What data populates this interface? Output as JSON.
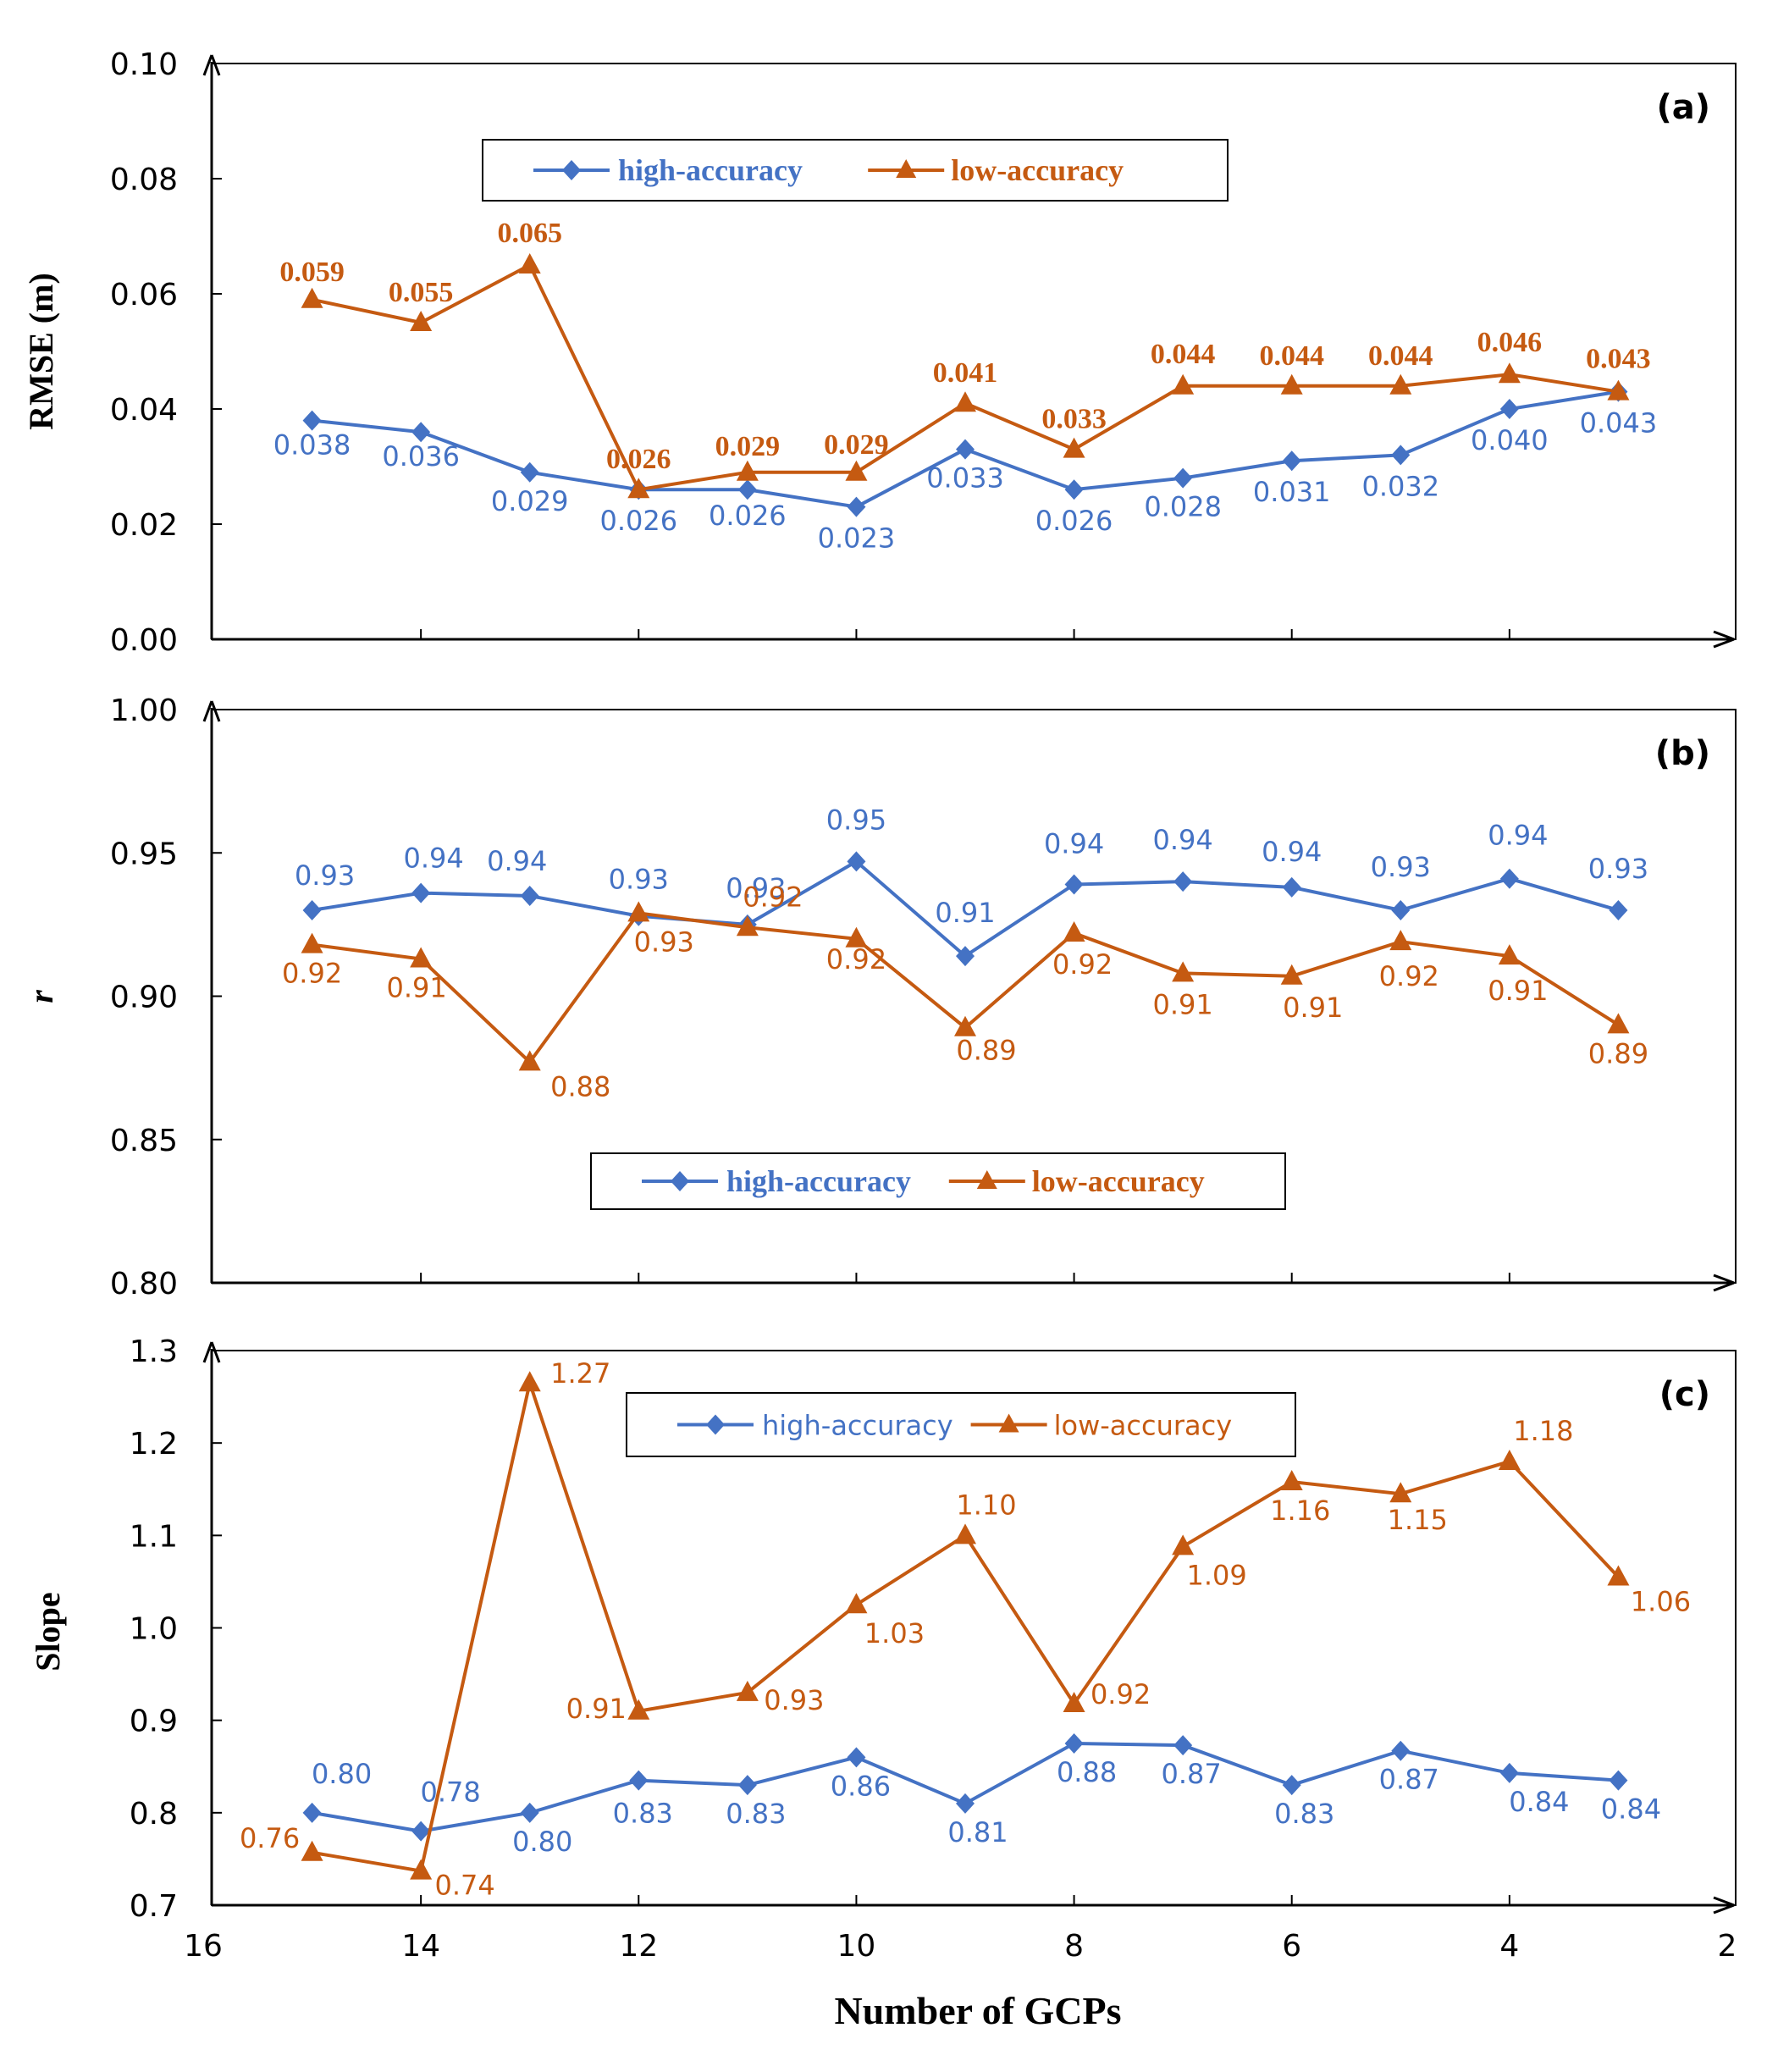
{
  "colors": {
    "high": "#4472C4",
    "low": "#C55A11",
    "axis": "#000000"
  },
  "xlabel": "Number of GCPs",
  "x_ticks": [
    "16",
    "14",
    "12",
    "10",
    "8",
    "6",
    "4",
    "2"
  ],
  "chart_data": [
    {
      "type": "line",
      "panel": "(a)",
      "ylabel": "RMSE (m)",
      "x": [
        15,
        14,
        13,
        12,
        11,
        10,
        9,
        8,
        7,
        6,
        5,
        4,
        3
      ],
      "xlim": [
        16,
        2
      ],
      "ylim": [
        0,
        0.1
      ],
      "y_ticks": [
        "0.00",
        "0.02",
        "0.04",
        "0.06",
        "0.08",
        "0.10"
      ],
      "legend": {
        "placement": "top-center",
        "high_label": "high-accuracy",
        "low_label": "low-accuracy"
      },
      "series": [
        {
          "name": "high-accuracy",
          "marker": "diamond",
          "values": [
            0.038,
            0.036,
            0.029,
            0.026,
            0.026,
            0.023,
            0.033,
            0.026,
            0.028,
            0.031,
            0.032,
            0.04,
            0.043
          ],
          "labels": [
            "0.038",
            "0.036",
            "0.029",
            "0.026",
            "0.026",
            "0.023",
            "0.033",
            "0.026",
            "0.028",
            "0.031",
            "0.032",
            "0.040",
            "0.043"
          ]
        },
        {
          "name": "low-accuracy",
          "marker": "triangle",
          "values": [
            0.059,
            0.055,
            0.065,
            0.026,
            0.029,
            0.029,
            0.041,
            0.033,
            0.044,
            0.044,
            0.044,
            0.046,
            0.043
          ],
          "labels": [
            "0.059",
            "0.055",
            "0.065",
            "0.026",
            "0.029",
            "0.029",
            "0.041",
            "0.033",
            "0.044",
            "0.044",
            "0.044",
            "0.046",
            "0.043"
          ]
        }
      ]
    },
    {
      "type": "line",
      "panel": "(b)",
      "ylabel": "r",
      "x": [
        15,
        14,
        13,
        12,
        11,
        10,
        9,
        8,
        7,
        6,
        5,
        4,
        3
      ],
      "xlim": [
        16,
        2
      ],
      "ylim": [
        0.8,
        1.0
      ],
      "y_ticks": [
        "0.80",
        "0.85",
        "0.90",
        "0.95",
        "1.00"
      ],
      "legend": {
        "placement": "bottom-center",
        "high_label": "high-accuracy",
        "low_label": "low-accuracy"
      },
      "series": [
        {
          "name": "high-accuracy",
          "marker": "diamond",
          "values": [
            0.93,
            0.936,
            0.935,
            0.928,
            0.925,
            0.947,
            0.914,
            0.939,
            0.94,
            0.938,
            0.93,
            0.941,
            0.93
          ],
          "labels": [
            "0.93",
            "0.94",
            "0.94",
            "0.93",
            "0.93",
            "0.95",
            "0.91",
            "0.94",
            "0.94",
            "0.94",
            "0.93",
            "0.94",
            "0.93"
          ]
        },
        {
          "name": "low-accuracy",
          "marker": "triangle",
          "values": [
            0.918,
            0.913,
            0.877,
            0.929,
            0.924,
            0.92,
            0.889,
            0.922,
            0.908,
            0.907,
            0.919,
            0.914,
            0.89
          ],
          "labels": [
            "0.92",
            "0.91",
            "0.88",
            "0.93",
            "0.92",
            "0.92",
            "0.89",
            "0.92",
            "0.91",
            "0.91",
            "0.92",
            "0.91",
            "0.89"
          ]
        }
      ]
    },
    {
      "type": "line",
      "panel": "(c)",
      "ylabel": "Slope",
      "x": [
        15,
        14,
        13,
        12,
        11,
        10,
        9,
        8,
        7,
        6,
        5,
        4,
        3
      ],
      "xlim": [
        16,
        2
      ],
      "ylim": [
        0.7,
        1.3
      ],
      "y_ticks": [
        "0.7",
        "0.8",
        "0.9",
        "1.0",
        "1.1",
        "1.2",
        "1.3"
      ],
      "legend": {
        "placement": "top-center",
        "high_label": "high-accuracy",
        "low_label": "low-accuracy"
      },
      "series": [
        {
          "name": "high-accuracy",
          "marker": "diamond",
          "values": [
            0.8,
            0.78,
            0.8,
            0.835,
            0.83,
            0.86,
            0.81,
            0.875,
            0.873,
            0.83,
            0.867,
            0.843,
            0.835
          ],
          "labels": [
            "0.80",
            "0.78",
            "0.80",
            "0.83",
            "0.83",
            "0.86",
            "0.81",
            "0.88",
            "0.87",
            "0.83",
            "0.87",
            "0.84",
            "0.84"
          ]
        },
        {
          "name": "low-accuracy",
          "marker": "triangle",
          "values": [
            0.757,
            0.737,
            1.265,
            0.91,
            0.93,
            1.025,
            1.1,
            0.918,
            1.088,
            1.158,
            1.145,
            1.18,
            1.055
          ],
          "labels": [
            "0.76",
            "0.74",
            "1.27",
            "0.91",
            "0.93",
            "1.03",
            "1.10",
            "0.92",
            "1.09",
            "1.16",
            "1.15",
            "1.18",
            "1.06"
          ]
        }
      ]
    }
  ]
}
